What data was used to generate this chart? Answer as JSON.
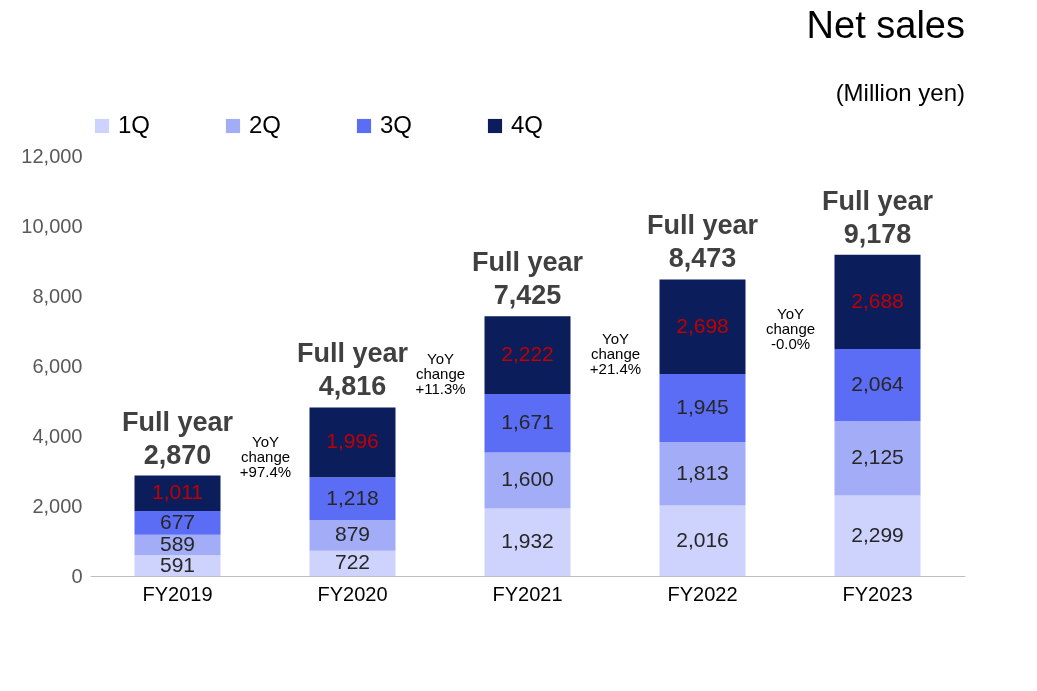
{
  "chart_data": {
    "type": "bar",
    "title": "Net sales",
    "subtitle": "(Million yen)",
    "stacked": true,
    "legend": "top left",
    "grid": false,
    "categories": [
      "FY2019",
      "FY2020",
      "FY2021",
      "FY2022",
      "FY2023"
    ],
    "series": [
      {
        "name": "1Q",
        "color": "#cdd3fc",
        "values": [
          591,
          722,
          1932,
          2016,
          2299
        ],
        "value_labels": [
          "591",
          "722",
          "1,932",
          "2,016",
          "2,299"
        ]
      },
      {
        "name": "2Q",
        "color": "#a3adf7",
        "values": [
          589,
          879,
          1600,
          1813,
          2125
        ],
        "value_labels": [
          "589",
          "879",
          "1,600",
          "1,813",
          "2,125"
        ]
      },
      {
        "name": "3Q",
        "color": "#5b6df4",
        "values": [
          677,
          1218,
          1671,
          1945,
          2064
        ],
        "value_labels": [
          "677",
          "1,218",
          "1,671",
          "1,945",
          "2,064"
        ]
      },
      {
        "name": "4Q",
        "color": "#0b1e5b",
        "values": [
          1011,
          1996,
          2222,
          2698,
          2688
        ],
        "value_labels": [
          "1,011",
          "1,996",
          "2,222",
          "2,698",
          "2,688"
        ]
      }
    ],
    "totals": [
      "Full year\n2,870",
      "Full year\n4,816",
      "Full year\n7,425",
      "Full year\n8,473",
      "Full year\n9,178"
    ],
    "annotations": [
      "YoY\nchange\n+97.4%",
      "YoY\nchange\n+11.3%",
      "YoY\nchange\n+21.4%",
      "YoY\nchange\n-0.0%"
    ],
    "ylim": [
      0,
      12000
    ],
    "yticks": [
      {
        "value": 0,
        "label": "0"
      },
      {
        "value": 2000,
        "label": "2,000"
      },
      {
        "value": 4000,
        "label": "4,000"
      },
      {
        "value": 6000,
        "label": "6,000"
      },
      {
        "value": 8000,
        "label": "8,000"
      },
      {
        "value": 10000,
        "label": "10,000"
      },
      {
        "value": 12000,
        "label": "12,000"
      }
    ]
  }
}
